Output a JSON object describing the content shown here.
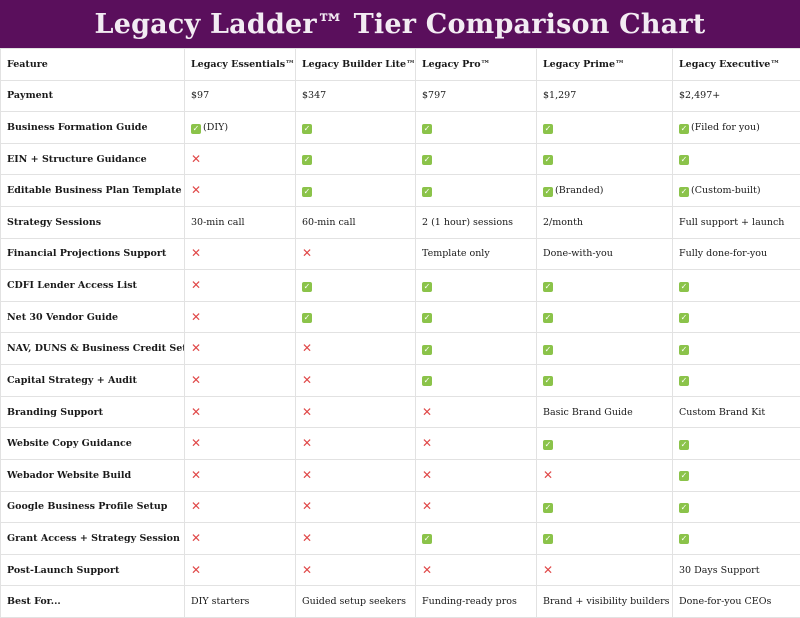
{
  "title": "Legacy Ladder™ Tier Comparison Chart",
  "colors": {
    "banner": "#5a0f5c",
    "check": "#8bc34a",
    "cross": "#e04848"
  },
  "header": [
    "Feature",
    "Legacy Essentials™",
    "Legacy Builder Lite™",
    "Legacy Pro™",
    "Legacy Prime™",
    "Legacy Executive™"
  ],
  "rows": [
    {
      "feature": "Payment",
      "cells": [
        {
          "text": "$97"
        },
        {
          "text": "$347"
        },
        {
          "text": "$797"
        },
        {
          "text": "$1,297"
        },
        {
          "text": "$2,497+"
        }
      ]
    },
    {
      "feature": "Business Formation Guide",
      "cells": [
        {
          "icon": "check",
          "text": "(DIY)"
        },
        {
          "icon": "check"
        },
        {
          "icon": "check"
        },
        {
          "icon": "check"
        },
        {
          "icon": "check",
          "text": "(Filed for you)"
        }
      ]
    },
    {
      "feature": "EIN + Structure Guidance",
      "cells": [
        {
          "icon": "cross"
        },
        {
          "icon": "check"
        },
        {
          "icon": "check"
        },
        {
          "icon": "check"
        },
        {
          "icon": "check"
        }
      ]
    },
    {
      "feature": "Editable Business Plan Template",
      "cells": [
        {
          "icon": "cross"
        },
        {
          "icon": "check"
        },
        {
          "icon": "check"
        },
        {
          "icon": "check",
          "text": "(Branded)"
        },
        {
          "icon": "check",
          "text": "(Custom-built)"
        }
      ]
    },
    {
      "feature": "Strategy Sessions",
      "cells": [
        {
          "text": "30-min call"
        },
        {
          "text": "60-min call"
        },
        {
          "text": "2 (1 hour) sessions"
        },
        {
          "text": "2/month"
        },
        {
          "text": "Full support + launch"
        }
      ]
    },
    {
      "feature": "Financial Projections Support",
      "cells": [
        {
          "icon": "cross"
        },
        {
          "icon": "cross"
        },
        {
          "text": "Template only"
        },
        {
          "text": "Done-with-you"
        },
        {
          "text": "Fully done-for-you"
        }
      ]
    },
    {
      "feature": "CDFI Lender Access List",
      "cells": [
        {
          "icon": "cross"
        },
        {
          "icon": "check"
        },
        {
          "icon": "check"
        },
        {
          "icon": "check"
        },
        {
          "icon": "check"
        }
      ]
    },
    {
      "feature": "Net 30 Vendor Guide",
      "cells": [
        {
          "icon": "cross"
        },
        {
          "icon": "check"
        },
        {
          "icon": "check"
        },
        {
          "icon": "check"
        },
        {
          "icon": "check"
        }
      ]
    },
    {
      "feature": "NAV, DUNS & Business Credit Setup",
      "cells": [
        {
          "icon": "cross"
        },
        {
          "icon": "cross"
        },
        {
          "icon": "check"
        },
        {
          "icon": "check"
        },
        {
          "icon": "check"
        }
      ]
    },
    {
      "feature": "Capital Strategy + Audit",
      "cells": [
        {
          "icon": "cross"
        },
        {
          "icon": "cross"
        },
        {
          "icon": "check"
        },
        {
          "icon": "check"
        },
        {
          "icon": "check"
        }
      ]
    },
    {
      "feature": "Branding Support",
      "cells": [
        {
          "icon": "cross"
        },
        {
          "icon": "cross"
        },
        {
          "icon": "cross"
        },
        {
          "text": "Basic Brand Guide"
        },
        {
          "text": "Custom Brand Kit"
        }
      ]
    },
    {
      "feature": "Website Copy Guidance",
      "cells": [
        {
          "icon": "cross"
        },
        {
          "icon": "cross"
        },
        {
          "icon": "cross"
        },
        {
          "icon": "check"
        },
        {
          "icon": "check"
        }
      ]
    },
    {
      "feature": "Webador Website Build",
      "cells": [
        {
          "icon": "cross"
        },
        {
          "icon": "cross"
        },
        {
          "icon": "cross"
        },
        {
          "icon": "cross"
        },
        {
          "icon": "check"
        }
      ]
    },
    {
      "feature": "Google Business Profile Setup",
      "cells": [
        {
          "icon": "cross"
        },
        {
          "icon": "cross"
        },
        {
          "icon": "cross"
        },
        {
          "icon": "check"
        },
        {
          "icon": "check"
        }
      ]
    },
    {
      "feature": "Grant Access + Strategy Session",
      "cells": [
        {
          "icon": "cross"
        },
        {
          "icon": "cross"
        },
        {
          "icon": "check"
        },
        {
          "icon": "check"
        },
        {
          "icon": "check"
        }
      ]
    },
    {
      "feature": "Post-Launch Support",
      "cells": [
        {
          "icon": "cross"
        },
        {
          "icon": "cross"
        },
        {
          "icon": "cross"
        },
        {
          "icon": "cross"
        },
        {
          "text": "30 Days Support"
        }
      ]
    },
    {
      "feature": "Best For...",
      "cells": [
        {
          "text": "DIY starters"
        },
        {
          "text": "Guided setup seekers"
        },
        {
          "text": "Funding-ready pros"
        },
        {
          "text": "Brand + visibility builders"
        },
        {
          "text": "Done-for-you CEOs"
        }
      ]
    }
  ]
}
